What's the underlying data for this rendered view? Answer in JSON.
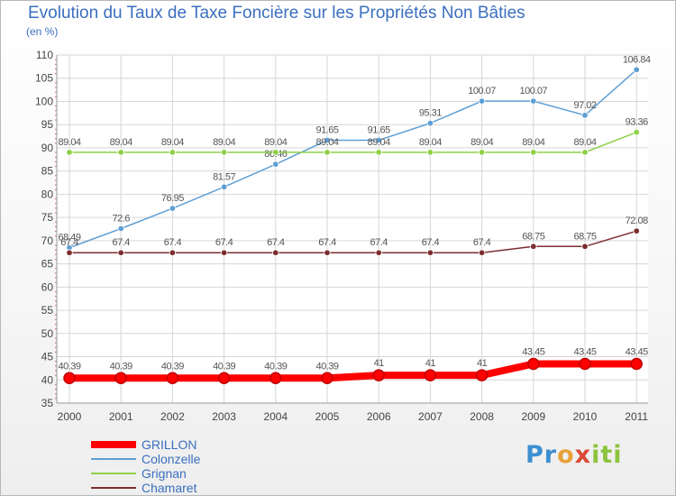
{
  "chart_data": {
    "type": "line",
    "title": "Evolution du Taux de Taxe Foncière sur les Propriétés Non Bâties",
    "ylabel": "(en %)",
    "xlabel": "",
    "ylim": [
      35,
      110
    ],
    "yticks": [
      35,
      40,
      45,
      50,
      55,
      60,
      65,
      70,
      75,
      80,
      85,
      90,
      95,
      100,
      105,
      110
    ],
    "categories": [
      "2000",
      "2001",
      "2002",
      "2003",
      "2004",
      "2005",
      "2006",
      "2007",
      "2008",
      "2009",
      "2010",
      "2011"
    ],
    "series": [
      {
        "name": "GRILLON",
        "color": "#ff0000",
        "values": [
          40.39,
          40.39,
          40.39,
          40.39,
          40.39,
          40.39,
          41,
          41,
          41,
          43.45,
          43.45,
          43.45
        ],
        "labels": [
          "40.39",
          "40.39",
          "40.39",
          "40.39",
          "40.39",
          "40.39",
          "41",
          "41",
          "41",
          "43.45",
          "43.45",
          "43.45"
        ]
      },
      {
        "name": "Colonzelle",
        "color": "#5f9fd4",
        "values": [
          68.49,
          72.6,
          76.95,
          81.57,
          86.46,
          91.65,
          91.65,
          95.31,
          100.07,
          100.07,
          97.02,
          106.84
        ],
        "labels": [
          "68.49",
          "72.6",
          "76.95",
          "81.57",
          "86.46",
          "91.65",
          "91.65",
          "95.31",
          "100.07",
          "100.07",
          "97.02",
          "106.84"
        ]
      },
      {
        "name": "Grignan",
        "color": "#8ed048",
        "values": [
          89.04,
          89.04,
          89.04,
          89.04,
          89.04,
          89.04,
          89.04,
          89.04,
          89.04,
          89.04,
          89.04,
          93.36
        ],
        "labels": [
          "89.04",
          "89.04",
          "89.04",
          "89.04",
          "89.04",
          "89.04",
          "89.04",
          "89.04",
          "89.04",
          "89.04",
          "89.04",
          "93.36"
        ]
      },
      {
        "name": "Chamaret",
        "color": "#7b2e2e",
        "values": [
          67.4,
          67.4,
          67.4,
          67.4,
          67.4,
          67.4,
          67.4,
          67.4,
          67.4,
          68.75,
          68.75,
          72.08
        ],
        "labels": [
          "67.4",
          "67.4",
          "67.4",
          "67.4",
          "67.4",
          "67.4",
          "67.4",
          "67.4",
          "67.4",
          "68.75",
          "68.75",
          "72.08"
        ]
      }
    ],
    "legend": [
      "GRILLON",
      "Colonzelle",
      "Grignan",
      "Chamaret"
    ],
    "legend_position": "bottom-left",
    "grid": true
  },
  "brand": {
    "parts": [
      "Pr",
      "o",
      "x",
      "iti"
    ]
  }
}
